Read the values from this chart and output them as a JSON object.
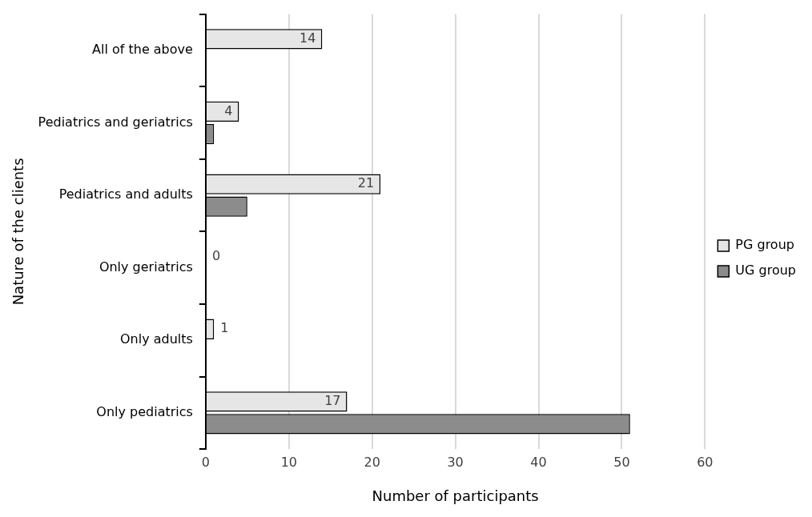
{
  "chart_data": {
    "type": "bar",
    "orientation": "horizontal",
    "xlabel": "Number of participants",
    "ylabel": "Nature of the clients",
    "categories": [
      "All of the above",
      "Pediatrics and geriatrics",
      "Pediatrics and adults",
      "Only geriatrics",
      "Only adults",
      "Only pediatrics"
    ],
    "series": [
      {
        "name": "PG group",
        "color": "#e6e6e6",
        "values": [
          14,
          4,
          21,
          0,
          1,
          17
        ],
        "value_labels": [
          "14",
          "4",
          "21",
          "0",
          "1",
          "17"
        ]
      },
      {
        "name": "UG group",
        "color": "#8c8c8c",
        "values": [
          0,
          1,
          5,
          0,
          0,
          51
        ]
      }
    ],
    "xlim": [
      0,
      60
    ],
    "xticks": [
      0,
      10,
      20,
      30,
      40,
      50,
      60
    ],
    "grid": "x",
    "legend": "right"
  }
}
